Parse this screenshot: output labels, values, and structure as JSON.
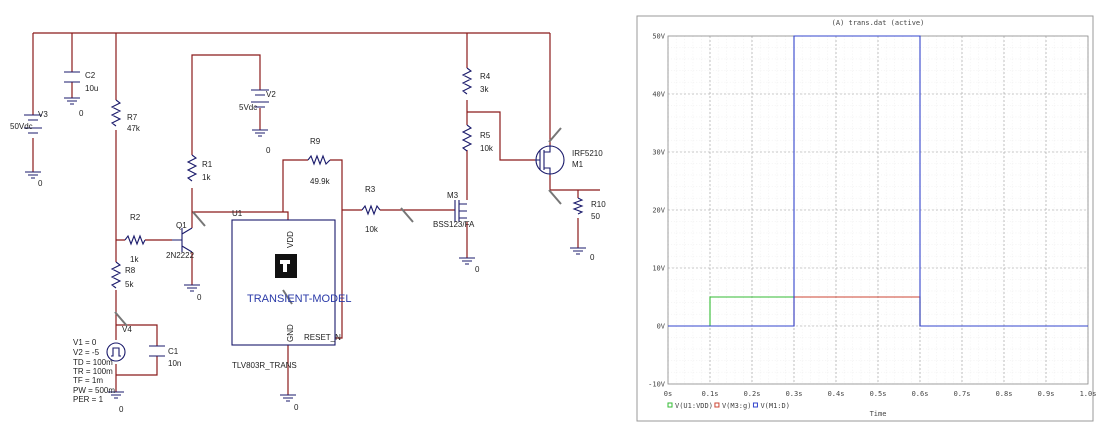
{
  "schematic": {
    "labels": [
      "C2",
      "10u",
      "0",
      "V3",
      "50Vdc",
      "0",
      "R7",
      "47k",
      "V2",
      "5Vdc",
      "0",
      "R9",
      "49.9k",
      "R1",
      "1k",
      "U1",
      "R3",
      "10k",
      "R4",
      "3k",
      "R5",
      "10k",
      "IRF5210",
      "M1",
      "M3",
      "BSS123/FA",
      "R10",
      "50",
      "0",
      "0",
      "R2",
      "Q1",
      "1k",
      "2N2222",
      "R8",
      "5k",
      "0",
      "V4",
      "C1",
      "10n",
      "V1 = 0",
      "V2 = -5",
      "TD = 100m",
      "TR = 100m",
      "TF = 1m",
      "PW = 500m",
      "PER = 1",
      "0",
      "0",
      "VDD",
      "TRANSIENT-MODEL",
      "GND",
      "RESET_N",
      "TLV803R_TRANS"
    ]
  },
  "chart_data": {
    "type": "line",
    "title": "(A) trans.dat (active)",
    "x_label": "Time",
    "x": [
      0,
      0.1,
      0.1,
      0.3,
      0.3,
      0.6,
      0.6,
      1.0
    ],
    "series": [
      {
        "name": "V(U1:VDD)",
        "color": "#33bb33",
        "values": [
          0,
          0,
          5,
          5,
          5,
          5,
          0,
          0
        ]
      },
      {
        "name": "V(M3:g)",
        "color": "#cc4433",
        "values": [
          0,
          0,
          0,
          0,
          5,
          5,
          0,
          0
        ]
      },
      {
        "name": "V(M1:D)",
        "color": "#3344cc",
        "values": [
          0,
          0,
          0,
          0,
          50,
          50,
          0,
          0
        ]
      }
    ],
    "xlim": [
      0,
      1.0
    ],
    "xticks": [
      {
        "value": 0,
        "label": "0s"
      },
      {
        "value": 0.1,
        "label": "0.1s"
      },
      {
        "value": 0.2,
        "label": "0.2s"
      },
      {
        "value": 0.3,
        "label": "0.3s"
      },
      {
        "value": 0.4,
        "label": "0.4s"
      },
      {
        "value": 0.5,
        "label": "0.5s"
      },
      {
        "value": 0.6,
        "label": "0.6s"
      },
      {
        "value": 0.7,
        "label": "0.7s"
      },
      {
        "value": 0.8,
        "label": "0.8s"
      },
      {
        "value": 0.9,
        "label": "0.9s"
      },
      {
        "value": 1.0,
        "label": "1.0s"
      }
    ],
    "ylim": [
      -10,
      50
    ],
    "yticks": [
      {
        "value": -10,
        "label": "-10V"
      },
      {
        "value": 0,
        "label": "0V"
      },
      {
        "value": 10,
        "label": "10V"
      },
      {
        "value": 20,
        "label": "20V"
      },
      {
        "value": 30,
        "label": "30V"
      },
      {
        "value": 40,
        "label": "40V"
      },
      {
        "value": 50,
        "label": "50V"
      }
    ],
    "grid": true
  }
}
